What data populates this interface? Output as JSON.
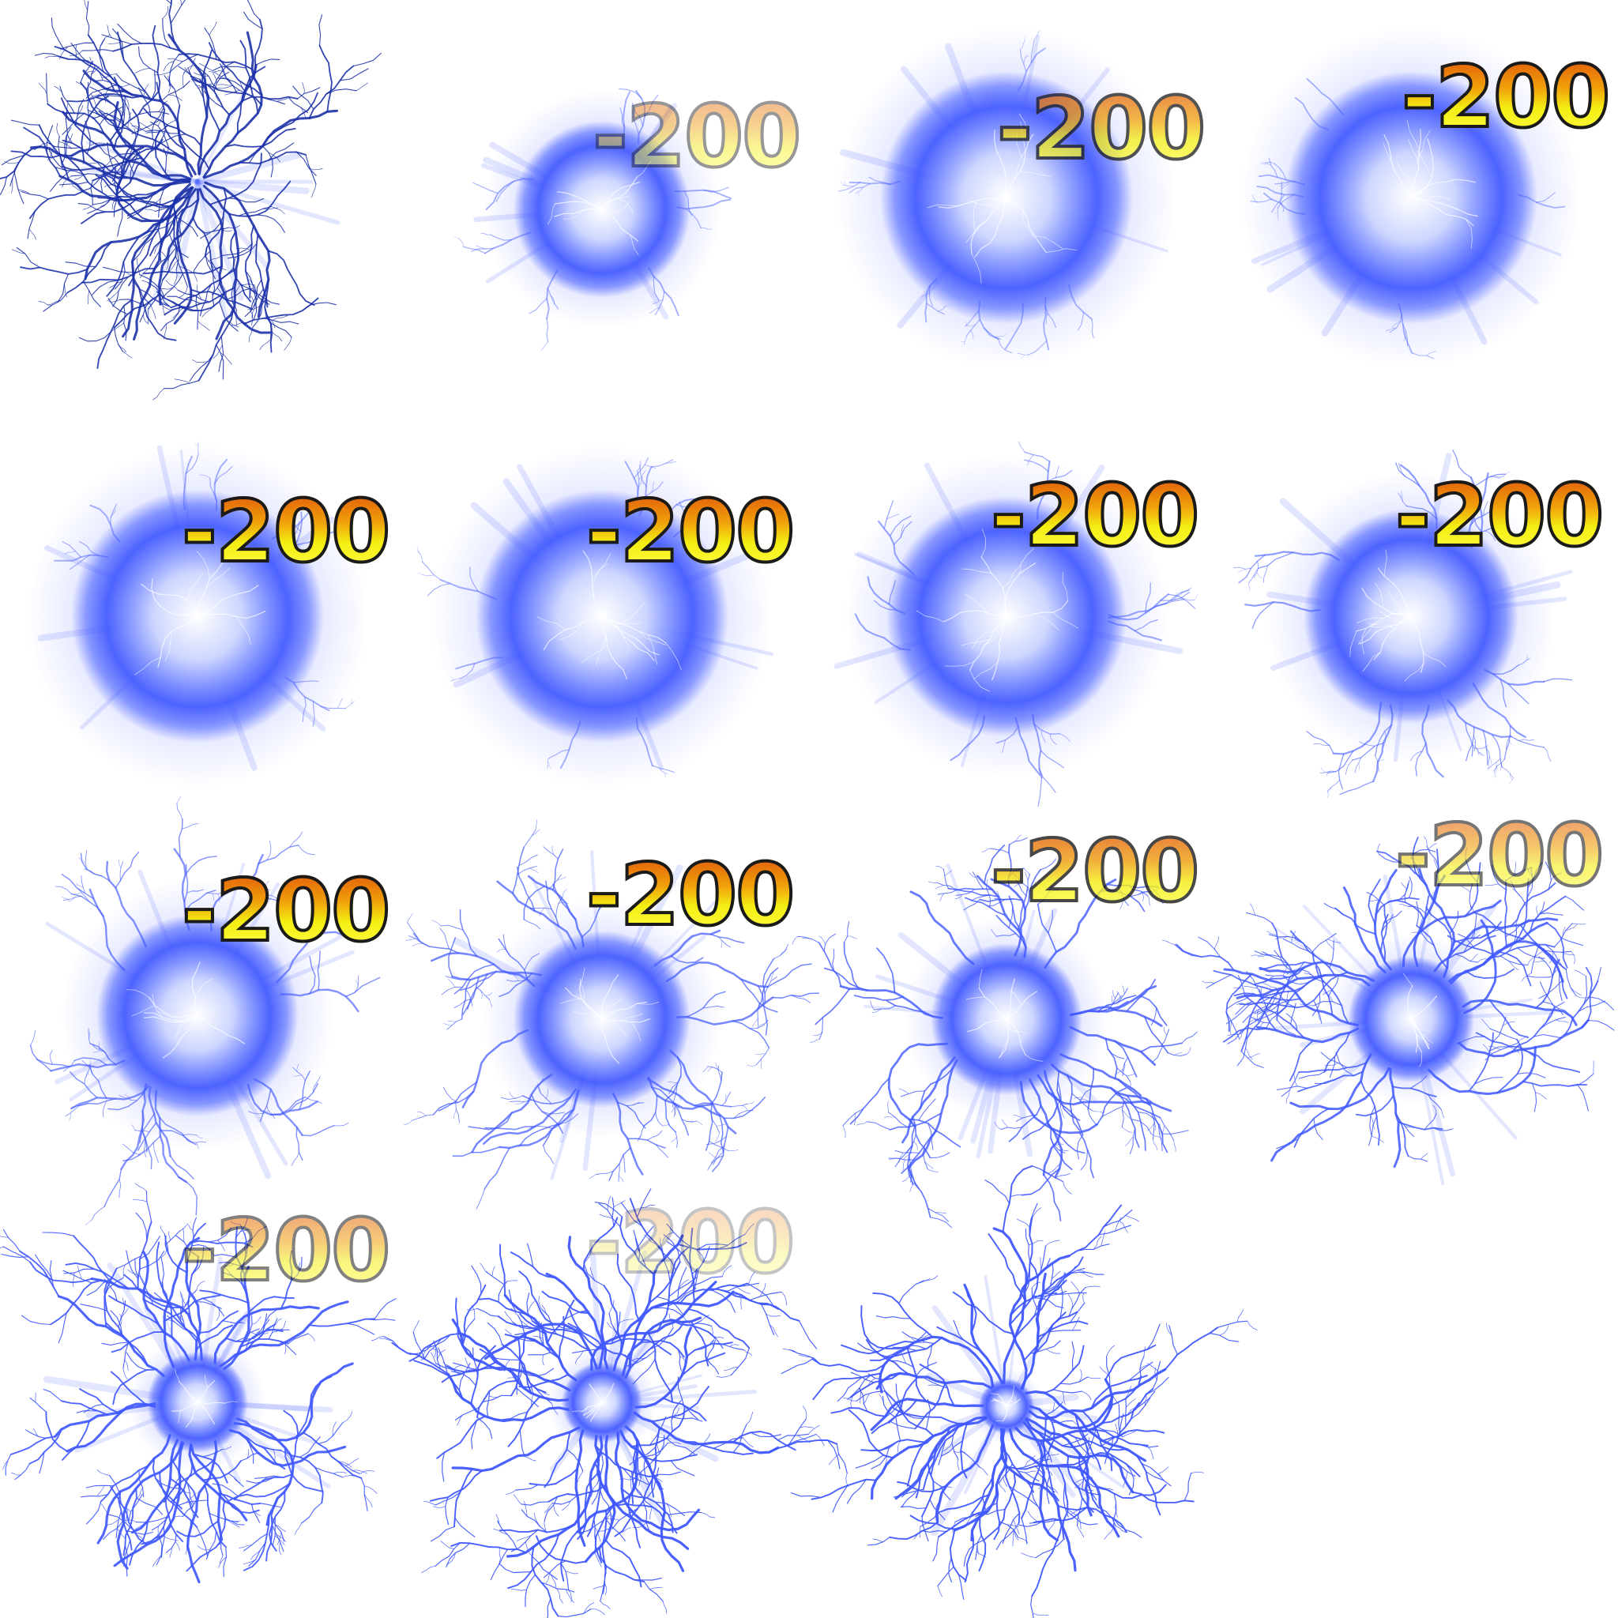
{
  "sprite_sheet": {
    "effect_icon": "lightning-orb-icon",
    "colors": {
      "glow": "#4058ff",
      "core": "#ffffff",
      "bolt": "#1a2fa8",
      "damage_top": "#e0550b",
      "damage_bottom": "#ffff4a",
      "damage_outline": "#1a1a1a"
    },
    "frames": [
      {
        "damage": "",
        "damage_opacity": 0,
        "orb_level": 0.0,
        "bolt_level": 0.9
      },
      {
        "damage": "-200",
        "damage_opacity": 0.45,
        "orb_level": 0.7,
        "bolt_level": 0.2
      },
      {
        "damage": "-200",
        "damage_opacity": 0.75,
        "orb_level": 1.0,
        "bolt_level": 0.15
      },
      {
        "damage": "-200",
        "damage_opacity": 1.0,
        "orb_level": 1.0,
        "bolt_level": 0.15
      },
      {
        "damage": "-200",
        "damage_opacity": 1.0,
        "orb_level": 1.0,
        "bolt_level": 0.2
      },
      {
        "damage": "-200",
        "damage_opacity": 1.0,
        "orb_level": 1.0,
        "bolt_level": 0.2
      },
      {
        "damage": "-200",
        "damage_opacity": 1.0,
        "orb_level": 0.95,
        "bolt_level": 0.3
      },
      {
        "damage": "-200",
        "damage_opacity": 1.0,
        "orb_level": 0.85,
        "bolt_level": 0.4
      },
      {
        "damage": "-200",
        "damage_opacity": 1.0,
        "orb_level": 0.8,
        "bolt_level": 0.5
      },
      {
        "damage": "-200",
        "damage_opacity": 1.0,
        "orb_level": 0.7,
        "bolt_level": 0.6
      },
      {
        "damage": "-200",
        "damage_opacity": 0.8,
        "orb_level": 0.6,
        "bolt_level": 0.75
      },
      {
        "damage": "-200",
        "damage_opacity": 0.6,
        "orb_level": 0.5,
        "bolt_level": 0.85
      },
      {
        "damage": "-200",
        "damage_opacity": 0.55,
        "orb_level": 0.4,
        "bolt_level": 0.95
      },
      {
        "damage": "-200",
        "damage_opacity": 0.25,
        "orb_level": 0.32,
        "bolt_level": 1.0
      },
      {
        "damage": "",
        "damage_opacity": 0,
        "orb_level": 0.22,
        "bolt_level": 1.0
      }
    ]
  }
}
